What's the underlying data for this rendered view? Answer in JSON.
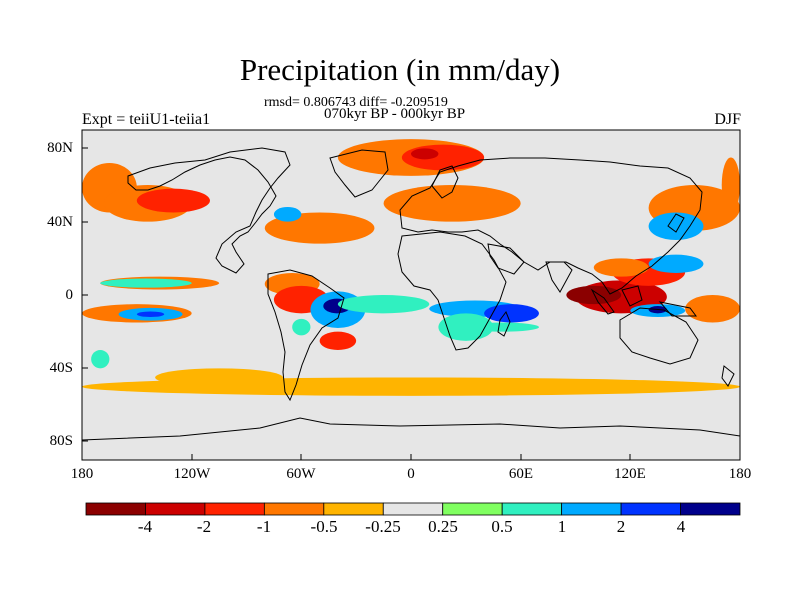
{
  "title": "Precipitation (in mm/day)",
  "stats_line": "rmsd= 0.806743 diff= -0.209519",
  "period_line": "070kyr BP - 000kyr BP",
  "experiment_label": "Expt = teiiU1-teiia1",
  "season_label": "DJF",
  "y_ticks": [
    "80N",
    "40N",
    "0",
    "40S",
    "80S"
  ],
  "x_ticks": [
    "180",
    "120W",
    "60W",
    "0",
    "60E",
    "120E",
    "180"
  ],
  "colorbar": {
    "labels": [
      "-4",
      "-2",
      "-1",
      "-0.5",
      "-0.25",
      "0.25",
      "0.5",
      "1",
      "2",
      "4"
    ],
    "colors": [
      "#8b0000",
      "#cc0000",
      "#ff2200",
      "#ff7700",
      "#ffb400",
      "#e6e6e6",
      "#80ff60",
      "#30f0c0",
      "#00aaff",
      "#0033ff",
      "#00008b"
    ]
  },
  "chart_data": {
    "type": "heatmap",
    "title": "Precipitation (in mm/day)",
    "subtitle": "070kyr BP - 000kyr BP",
    "xlabel": "",
    "ylabel": "",
    "xlim": [
      -180,
      180
    ],
    "ylim": [
      -90,
      90
    ],
    "x_tick_values": [
      -180,
      -120,
      -60,
      0,
      60,
      120,
      180
    ],
    "y_tick_values": [
      80,
      40,
      0,
      -40,
      -80
    ],
    "contour_levels": [
      -4,
      -2,
      -1,
      -0.5,
      -0.25,
      0.25,
      0.5,
      1,
      2,
      4
    ],
    "anomaly_regions": [
      {
        "lon": [
          170,
          180
        ],
        "lat": [
          45,
          75
        ],
        "class": -0.5
      },
      {
        "lon": [
          -180,
          -150
        ],
        "lat": [
          45,
          72
        ],
        "class": -0.5
      },
      {
        "lon": [
          -168,
          -120
        ],
        "lat": [
          40,
          60
        ],
        "class": -0.5
      },
      {
        "lon": [
          -150,
          -110
        ],
        "lat": [
          45,
          58
        ],
        "class": -1
      },
      {
        "lon": [
          -80,
          -20
        ],
        "lat": [
          28,
          45
        ],
        "class": -0.5
      },
      {
        "lon": [
          -75,
          -60
        ],
        "lat": [
          40,
          48
        ],
        "class": 1
      },
      {
        "lon": [
          -40,
          40
        ],
        "lat": [
          65,
          85
        ],
        "class": -0.5
      },
      {
        "lon": [
          -5,
          40
        ],
        "lat": [
          68,
          82
        ],
        "class": -1
      },
      {
        "lon": [
          0,
          15
        ],
        "lat": [
          74,
          80
        ],
        "class": -2
      },
      {
        "lon": [
          -15,
          60
        ],
        "lat": [
          40,
          60
        ],
        "class": -0.5
      },
      {
        "lon": [
          130,
          180
        ],
        "lat": [
          35,
          60
        ],
        "class": -0.5
      },
      {
        "lon": [
          130,
          160
        ],
        "lat": [
          30,
          45
        ],
        "class": 1
      },
      {
        "lon": [
          -170,
          -105
        ],
        "lat": [
          3,
          10
        ],
        "class": -0.5
      },
      {
        "lon": [
          -170,
          -120
        ],
        "lat": [
          4,
          9
        ],
        "class": 0.5
      },
      {
        "lon": [
          -180,
          -120
        ],
        "lat": [
          -15,
          -5
        ],
        "class": -0.5
      },
      {
        "lon": [
          -160,
          -125
        ],
        "lat": [
          -14,
          -7
        ],
        "class": 1
      },
      {
        "lon": [
          -150,
          -135
        ],
        "lat": [
          -12,
          -9
        ],
        "class": 2
      },
      {
        "lon": [
          -80,
          -50
        ],
        "lat": [
          0,
          12
        ],
        "class": -0.5
      },
      {
        "lon": [
          -75,
          -45
        ],
        "lat": [
          -10,
          5
        ],
        "class": -1
      },
      {
        "lon": [
          -55,
          -25
        ],
        "lat": [
          -18,
          2
        ],
        "class": 1
      },
      {
        "lon": [
          -48,
          -33
        ],
        "lat": [
          -10,
          -2
        ],
        "class": 4
      },
      {
        "lon": [
          -50,
          -30
        ],
        "lat": [
          -30,
          -20
        ],
        "class": -1
      },
      {
        "lon": [
          -65,
          -55
        ],
        "lat": [
          -22,
          -13
        ],
        "class": 0.5
      },
      {
        "lon": [
          -40,
          10
        ],
        "lat": [
          -10,
          0
        ],
        "class": 0.5
      },
      {
        "lon": [
          10,
          60
        ],
        "lat": [
          -12,
          -3
        ],
        "class": 1
      },
      {
        "lon": [
          15,
          45
        ],
        "lat": [
          -25,
          -10
        ],
        "class": 0.5
      },
      {
        "lon": [
          40,
          70
        ],
        "lat": [
          -15,
          -5
        ],
        "class": 2
      },
      {
        "lon": [
          30,
          70
        ],
        "lat": [
          -20,
          -15
        ],
        "class": 0.5
      },
      {
        "lon": [
          90,
          140
        ],
        "lat": [
          -10,
          8
        ],
        "class": -2
      },
      {
        "lon": [
          85,
          115
        ],
        "lat": [
          -5,
          5
        ],
        "class": -4
      },
      {
        "lon": [
          120,
          150
        ],
        "lat": [
          -12,
          -5
        ],
        "class": 1
      },
      {
        "lon": [
          130,
          140
        ],
        "lat": [
          -10,
          -6
        ],
        "class": 4
      },
      {
        "lon": [
          110,
          150
        ],
        "lat": [
          5,
          20
        ],
        "class": -1
      },
      {
        "lon": [
          100,
          130
        ],
        "lat": [
          10,
          20
        ],
        "class": -0.5
      },
      {
        "lon": [
          130,
          160
        ],
        "lat": [
          12,
          22
        ],
        "class": 1
      },
      {
        "lon": [
          150,
          180
        ],
        "lat": [
          -15,
          0
        ],
        "class": -0.5
      },
      {
        "lon": [
          -180,
          180
        ],
        "lat": [
          -55,
          -45
        ],
        "class": -0.25
      },
      {
        "lon": [
          -140,
          -70
        ],
        "lat": [
          -50,
          -40
        ],
        "class": -0.25
      },
      {
        "lon": [
          -175,
          -165
        ],
        "lat": [
          -40,
          -30
        ],
        "class": 0.5
      }
    ]
  }
}
